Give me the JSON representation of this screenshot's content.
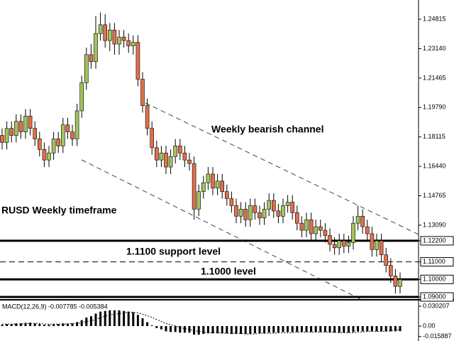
{
  "chart_data": {
    "type": "candlestick",
    "up_color": "#a3c45a",
    "down_color": "#e0704a",
    "ylim": [
      1.0892,
      1.2591
    ],
    "yticks": [
      1.24815,
      {
        "value": 1.2314,
        "label": "1.23140"
      },
      1.21465,
      {
        "value": 1.1979,
        "label": "1.19790"
      },
      1.18115,
      {
        "value": 1.1644,
        "label": "1.16440"
      },
      1.14765,
      {
        "value": 1.1309,
        "label": "1.13090"
      },
      {
        "value": 1.122,
        "label": "1.12200"
      },
      {
        "value": 1.11,
        "label": "1.11000"
      },
      {
        "value": 1.1,
        "label": "1.10000"
      },
      {
        "value": 1.09,
        "label": "1.09000"
      }
    ],
    "hlines": [
      {
        "value": 1.122,
        "style": "solid"
      },
      {
        "value": 1.11,
        "style": "dashed"
      },
      {
        "value": 1.1,
        "style": "solid"
      },
      {
        "value": 1.09,
        "style": "solid"
      }
    ],
    "annotations": [
      "Weekly bearish channel",
      "RUSD Weekly timeframe",
      "1.1100 support level",
      "1.1000 level"
    ],
    "candles": [
      [
        1.182,
        1.186,
        1.174,
        1.178
      ],
      [
        1.178,
        1.19,
        1.174,
        1.186
      ],
      [
        1.186,
        1.19,
        1.178,
        1.182
      ],
      [
        1.182,
        1.194,
        1.178,
        1.19
      ],
      [
        1.19,
        1.194,
        1.18,
        1.184
      ],
      [
        1.184,
        1.197,
        1.18,
        1.193
      ],
      [
        1.193,
        1.197,
        1.182,
        1.186
      ],
      [
        1.186,
        1.19,
        1.176,
        1.18
      ],
      [
        1.18,
        1.184,
        1.17,
        1.174
      ],
      [
        1.174,
        1.178,
        1.164,
        1.168
      ],
      [
        1.168,
        1.176,
        1.164,
        1.172
      ],
      [
        1.172,
        1.184,
        1.168,
        1.18
      ],
      [
        1.18,
        1.184,
        1.172,
        1.176
      ],
      [
        1.176,
        1.192,
        1.172,
        1.188
      ],
      [
        1.188,
        1.192,
        1.18,
        1.184
      ],
      [
        1.184,
        1.188,
        1.176,
        1.18
      ],
      [
        1.18,
        1.2,
        1.176,
        1.196
      ],
      [
        1.196,
        1.216,
        1.192,
        1.212
      ],
      [
        1.212,
        1.232,
        1.208,
        1.228
      ],
      [
        1.228,
        1.234,
        1.22,
        1.224
      ],
      [
        1.224,
        1.25,
        1.22,
        1.24
      ],
      [
        1.24,
        1.252,
        1.236,
        1.245
      ],
      [
        1.245,
        1.251,
        1.232,
        1.236
      ],
      [
        1.236,
        1.246,
        1.23,
        1.242
      ],
      [
        1.242,
        1.246,
        1.228,
        1.234
      ],
      [
        1.234,
        1.242,
        1.228,
        1.238
      ],
      [
        1.238,
        1.242,
        1.232,
        1.236
      ],
      [
        1.236,
        1.24,
        1.229,
        1.233
      ],
      [
        1.233,
        1.239,
        1.228,
        1.235
      ],
      [
        1.235,
        1.239,
        1.21,
        1.214
      ],
      [
        1.214,
        1.218,
        1.195,
        1.199
      ],
      [
        1.199,
        1.203,
        1.182,
        1.186
      ],
      [
        1.186,
        1.19,
        1.171,
        1.175
      ],
      [
        1.175,
        1.179,
        1.164,
        1.168
      ],
      [
        1.168,
        1.176,
        1.164,
        1.172
      ],
      [
        1.172,
        1.176,
        1.16,
        1.164
      ],
      [
        1.164,
        1.174,
        1.16,
        1.17
      ],
      [
        1.17,
        1.18,
        1.166,
        1.176
      ],
      [
        1.176,
        1.18,
        1.168,
        1.172
      ],
      [
        1.172,
        1.176,
        1.164,
        1.168
      ],
      [
        1.168,
        1.172,
        1.162,
        1.166
      ],
      [
        1.166,
        1.17,
        1.134,
        1.14
      ],
      [
        1.14,
        1.154,
        1.136,
        1.15
      ],
      [
        1.15,
        1.159,
        1.146,
        1.155
      ],
      [
        1.155,
        1.164,
        1.151,
        1.16
      ],
      [
        1.16,
        1.164,
        1.148,
        1.152
      ],
      [
        1.152,
        1.16,
        1.148,
        1.156
      ],
      [
        1.156,
        1.16,
        1.146,
        1.15
      ],
      [
        1.15,
        1.154,
        1.142,
        1.146
      ],
      [
        1.146,
        1.15,
        1.138,
        1.142
      ],
      [
        1.142,
        1.146,
        1.132,
        1.136
      ],
      [
        1.136,
        1.144,
        1.132,
        1.14
      ],
      [
        1.14,
        1.144,
        1.13,
        1.134
      ],
      [
        1.134,
        1.146,
        1.13,
        1.142
      ],
      [
        1.142,
        1.146,
        1.134,
        1.138
      ],
      [
        1.138,
        1.142,
        1.131,
        1.135
      ],
      [
        1.135,
        1.144,
        1.131,
        1.14
      ],
      [
        1.14,
        1.149,
        1.136,
        1.145
      ],
      [
        1.145,
        1.149,
        1.135,
        1.139
      ],
      [
        1.139,
        1.143,
        1.132,
        1.136
      ],
      [
        1.136,
        1.146,
        1.132,
        1.142
      ],
      [
        1.142,
        1.148,
        1.138,
        1.144
      ],
      [
        1.144,
        1.148,
        1.134,
        1.138
      ],
      [
        1.138,
        1.142,
        1.128,
        1.132
      ],
      [
        1.132,
        1.136,
        1.124,
        1.128
      ],
      [
        1.128,
        1.138,
        1.124,
        1.134
      ],
      [
        1.134,
        1.138,
        1.122,
        1.126
      ],
      [
        1.126,
        1.134,
        1.122,
        1.13
      ],
      [
        1.13,
        1.134,
        1.124,
        1.128
      ],
      [
        1.128,
        1.132,
        1.121,
        1.125
      ],
      [
        1.125,
        1.129,
        1.116,
        1.12
      ],
      [
        1.12,
        1.124,
        1.114,
        1.118
      ],
      [
        1.118,
        1.126,
        1.114,
        1.122
      ],
      [
        1.122,
        1.126,
        1.115,
        1.119
      ],
      [
        1.119,
        1.125,
        1.115,
        1.121
      ],
      [
        1.121,
        1.136,
        1.117,
        1.132
      ],
      [
        1.132,
        1.142,
        1.128,
        1.136
      ],
      [
        1.136,
        1.14,
        1.126,
        1.13
      ],
      [
        1.13,
        1.134,
        1.122,
        1.126
      ],
      [
        1.126,
        1.13,
        1.113,
        1.117
      ],
      [
        1.117,
        1.126,
        1.113,
        1.122
      ],
      [
        1.122,
        1.126,
        1.11,
        1.114
      ],
      [
        1.114,
        1.118,
        1.104,
        1.108
      ],
      [
        1.108,
        1.112,
        1.098,
        1.102
      ],
      [
        1.102,
        1.106,
        1.092,
        1.096
      ],
      [
        1.096,
        1.104,
        1.092,
        1.1
      ]
    ],
    "indicator": {
      "title": "MACD(12,26,9) -0.007785 -0.005384",
      "ylim": [
        -0.0227,
        0.0378
      ],
      "yticks": [
        0.030207,
        {
          "value": 0,
          "label": "0.00"
        },
        -0.015887
      ],
      "histogram": [
        0.002,
        0.003,
        0.003,
        0.004,
        0.004,
        0.005,
        0.005,
        0.004,
        0.003,
        0.002,
        0.002,
        0.003,
        0.003,
        0.004,
        0.004,
        0.004,
        0.006,
        0.009,
        0.013,
        0.015,
        0.019,
        0.022,
        0.023,
        0.024,
        0.024,
        0.024,
        0.023,
        0.022,
        0.021,
        0.017,
        0.012,
        0.006,
        0.001,
        -0.003,
        -0.005,
        -0.008,
        -0.009,
        -0.009,
        -0.01,
        -0.01,
        -0.01,
        -0.013,
        -0.013,
        -0.012,
        -0.011,
        -0.011,
        -0.011,
        -0.011,
        -0.011,
        -0.012,
        -0.012,
        -0.012,
        -0.012,
        -0.012,
        -0.011,
        -0.011,
        -0.011,
        -0.01,
        -0.01,
        -0.01,
        -0.009,
        -0.009,
        -0.009,
        -0.009,
        -0.009,
        -0.009,
        -0.009,
        -0.009,
        -0.009,
        -0.009,
        -0.01,
        -0.01,
        -0.01,
        -0.01,
        -0.01,
        -0.009,
        -0.008,
        -0.008,
        -0.008,
        -0.008,
        -0.008,
        -0.008,
        -0.008,
        -0.008,
        -0.008,
        -0.007785
      ],
      "signal": [
        0.003,
        0.003,
        0.003,
        0.003,
        0.003,
        0.004,
        0.004,
        0.004,
        0.004,
        0.003,
        0.003,
        0.003,
        0.003,
        0.003,
        0.003,
        0.004,
        0.004,
        0.005,
        0.007,
        0.008,
        0.01,
        0.013,
        0.015,
        0.017,
        0.018,
        0.019,
        0.02,
        0.021,
        0.021,
        0.02,
        0.018,
        0.016,
        0.013,
        0.01,
        0.007,
        0.004,
        0.002,
        0,
        -0.002,
        -0.004,
        -0.005,
        -0.007,
        -0.008,
        -0.009,
        -0.01,
        -0.01,
        -0.01,
        -0.011,
        -0.011,
        -0.011,
        -0.011,
        -0.011,
        -0.012,
        -0.012,
        -0.012,
        -0.011,
        -0.011,
        -0.011,
        -0.011,
        -0.01,
        -0.01,
        -0.01,
        -0.01,
        -0.009,
        -0.009,
        -0.009,
        -0.009,
        -0.009,
        -0.009,
        -0.009,
        -0.009,
        -0.009,
        -0.01,
        -0.01,
        -0.01,
        -0.01,
        -0.009,
        -0.009,
        -0.008,
        -0.008,
        -0.008,
        -0.008,
        -0.008,
        -0.007,
        -0.006,
        -0.005384
      ]
    }
  }
}
